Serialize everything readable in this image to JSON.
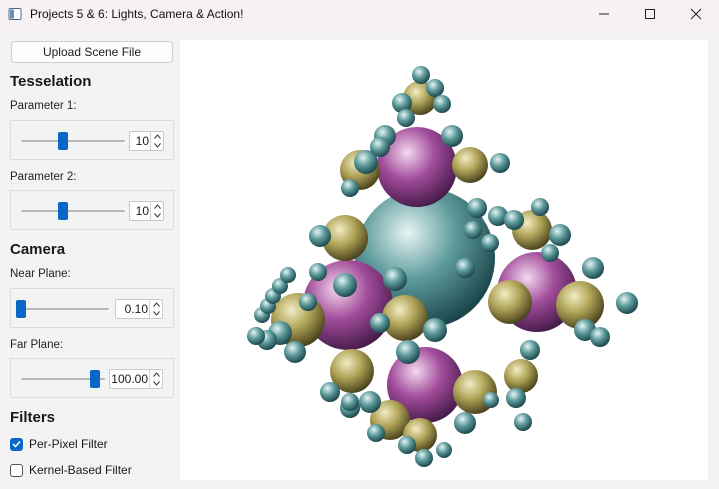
{
  "window": {
    "title": "Projects 5 & 6: Lights, Camera & Action!"
  },
  "sidebar": {
    "upload_button": "Upload Scene File",
    "tesselation": {
      "title": "Tesselation",
      "param1": {
        "label": "Parameter 1:",
        "value": "10",
        "level": 0.45
      },
      "param2": {
        "label": "Parameter 2:",
        "value": "10",
        "level": 0.45
      }
    },
    "camera": {
      "title": "Camera",
      "near": {
        "label": "Near Plane:",
        "value": "0.10",
        "level": 0.0
      },
      "far": {
        "label": "Far Plane:",
        "value": "100.00",
        "level": 1.0
      }
    },
    "filters": {
      "title": "Filters",
      "per_pixel": {
        "label": "Per-Pixel Filter",
        "checked": true
      },
      "kernel": {
        "label": "Kernel-Based Filter",
        "checked": false
      }
    }
  },
  "colors": {
    "accent": "#0a67c8",
    "sphere_teal": "#3f7f80",
    "sphere_purple": "#a24d9b",
    "sphere_olive": "#b0a458"
  },
  "icons": [
    "app-icon",
    "minimize-icon",
    "maximize-icon",
    "close-icon",
    "chevron-up-icon",
    "chevron-down-icon",
    "checkmark-icon"
  ]
}
